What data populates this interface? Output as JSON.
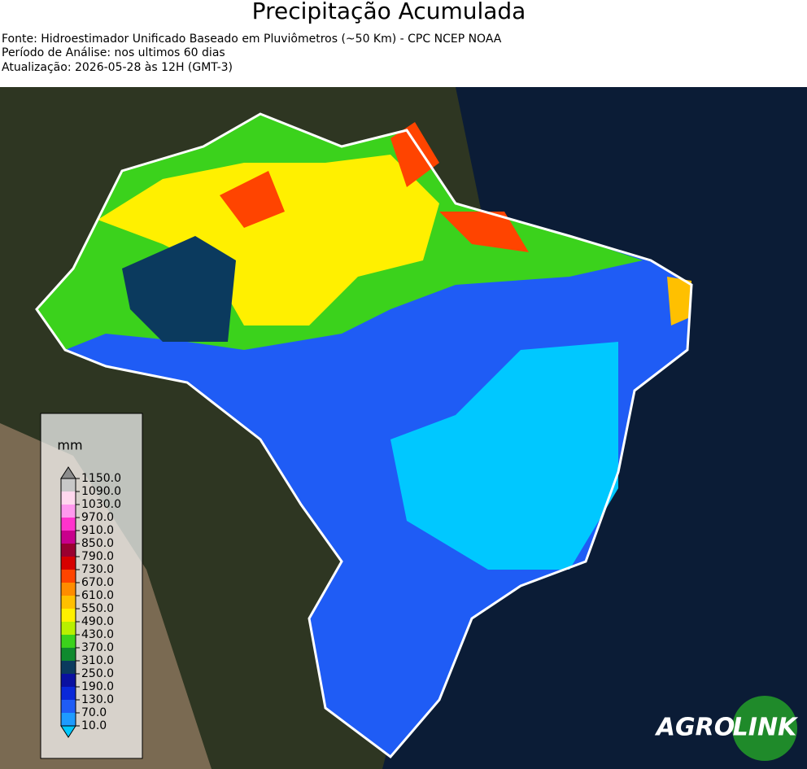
{
  "header": {
    "title": "Precipitação Acumulada",
    "lines": [
      "Fonte: Hidroestimador Unificado Baseado em Pluviômetros (~50 Km) - CPC NCEP NOAA",
      "Período de Análise: nos ultimos 60 dias",
      "Atualização: 2026-05-28 às 12H (GMT-3)"
    ]
  },
  "legend": {
    "unit": "mm",
    "ticks": [
      {
        "value": 10,
        "label": "10.0"
      },
      {
        "value": 70,
        "label": "70.0"
      },
      {
        "value": 130,
        "label": "130.0"
      },
      {
        "value": 190,
        "label": "190.0"
      },
      {
        "value": 250,
        "label": "250.0"
      },
      {
        "value": 310,
        "label": "310.0"
      },
      {
        "value": 370,
        "label": "370.0"
      },
      {
        "value": 430,
        "label": "430.0"
      },
      {
        "value": 490,
        "label": "490.0"
      },
      {
        "value": 550,
        "label": "550.0"
      },
      {
        "value": 610,
        "label": "610.0"
      },
      {
        "value": 670,
        "label": "670.0"
      },
      {
        "value": 730,
        "label": "730.0"
      },
      {
        "value": 790,
        "label": "790.0"
      },
      {
        "value": 850,
        "label": "850.0"
      },
      {
        "value": 910,
        "label": "910.0"
      },
      {
        "value": 970,
        "label": "970.0"
      },
      {
        "value": 1030,
        "label": "1030.0"
      },
      {
        "value": 1090,
        "label": "1090.0"
      },
      {
        "value": 1150,
        "label": "1150.0"
      }
    ],
    "colors": [
      "#1e9bff",
      "#1f5cf5",
      "#0a28d8",
      "#0a10a0",
      "#0b3a5e",
      "#0f8a2e",
      "#3bd21c",
      "#b8f000",
      "#fff000",
      "#ffc000",
      "#ff8c00",
      "#ff4400",
      "#d60000",
      "#9a0030",
      "#c8008c",
      "#ff33cc",
      "#ff99ee",
      "#ffd8ee",
      "#c8c8c8"
    ],
    "under_color": "#00c8ff",
    "over_color": "#8c8c8c"
  },
  "logo": {
    "left": "AGRO",
    "right": "LINK"
  }
}
